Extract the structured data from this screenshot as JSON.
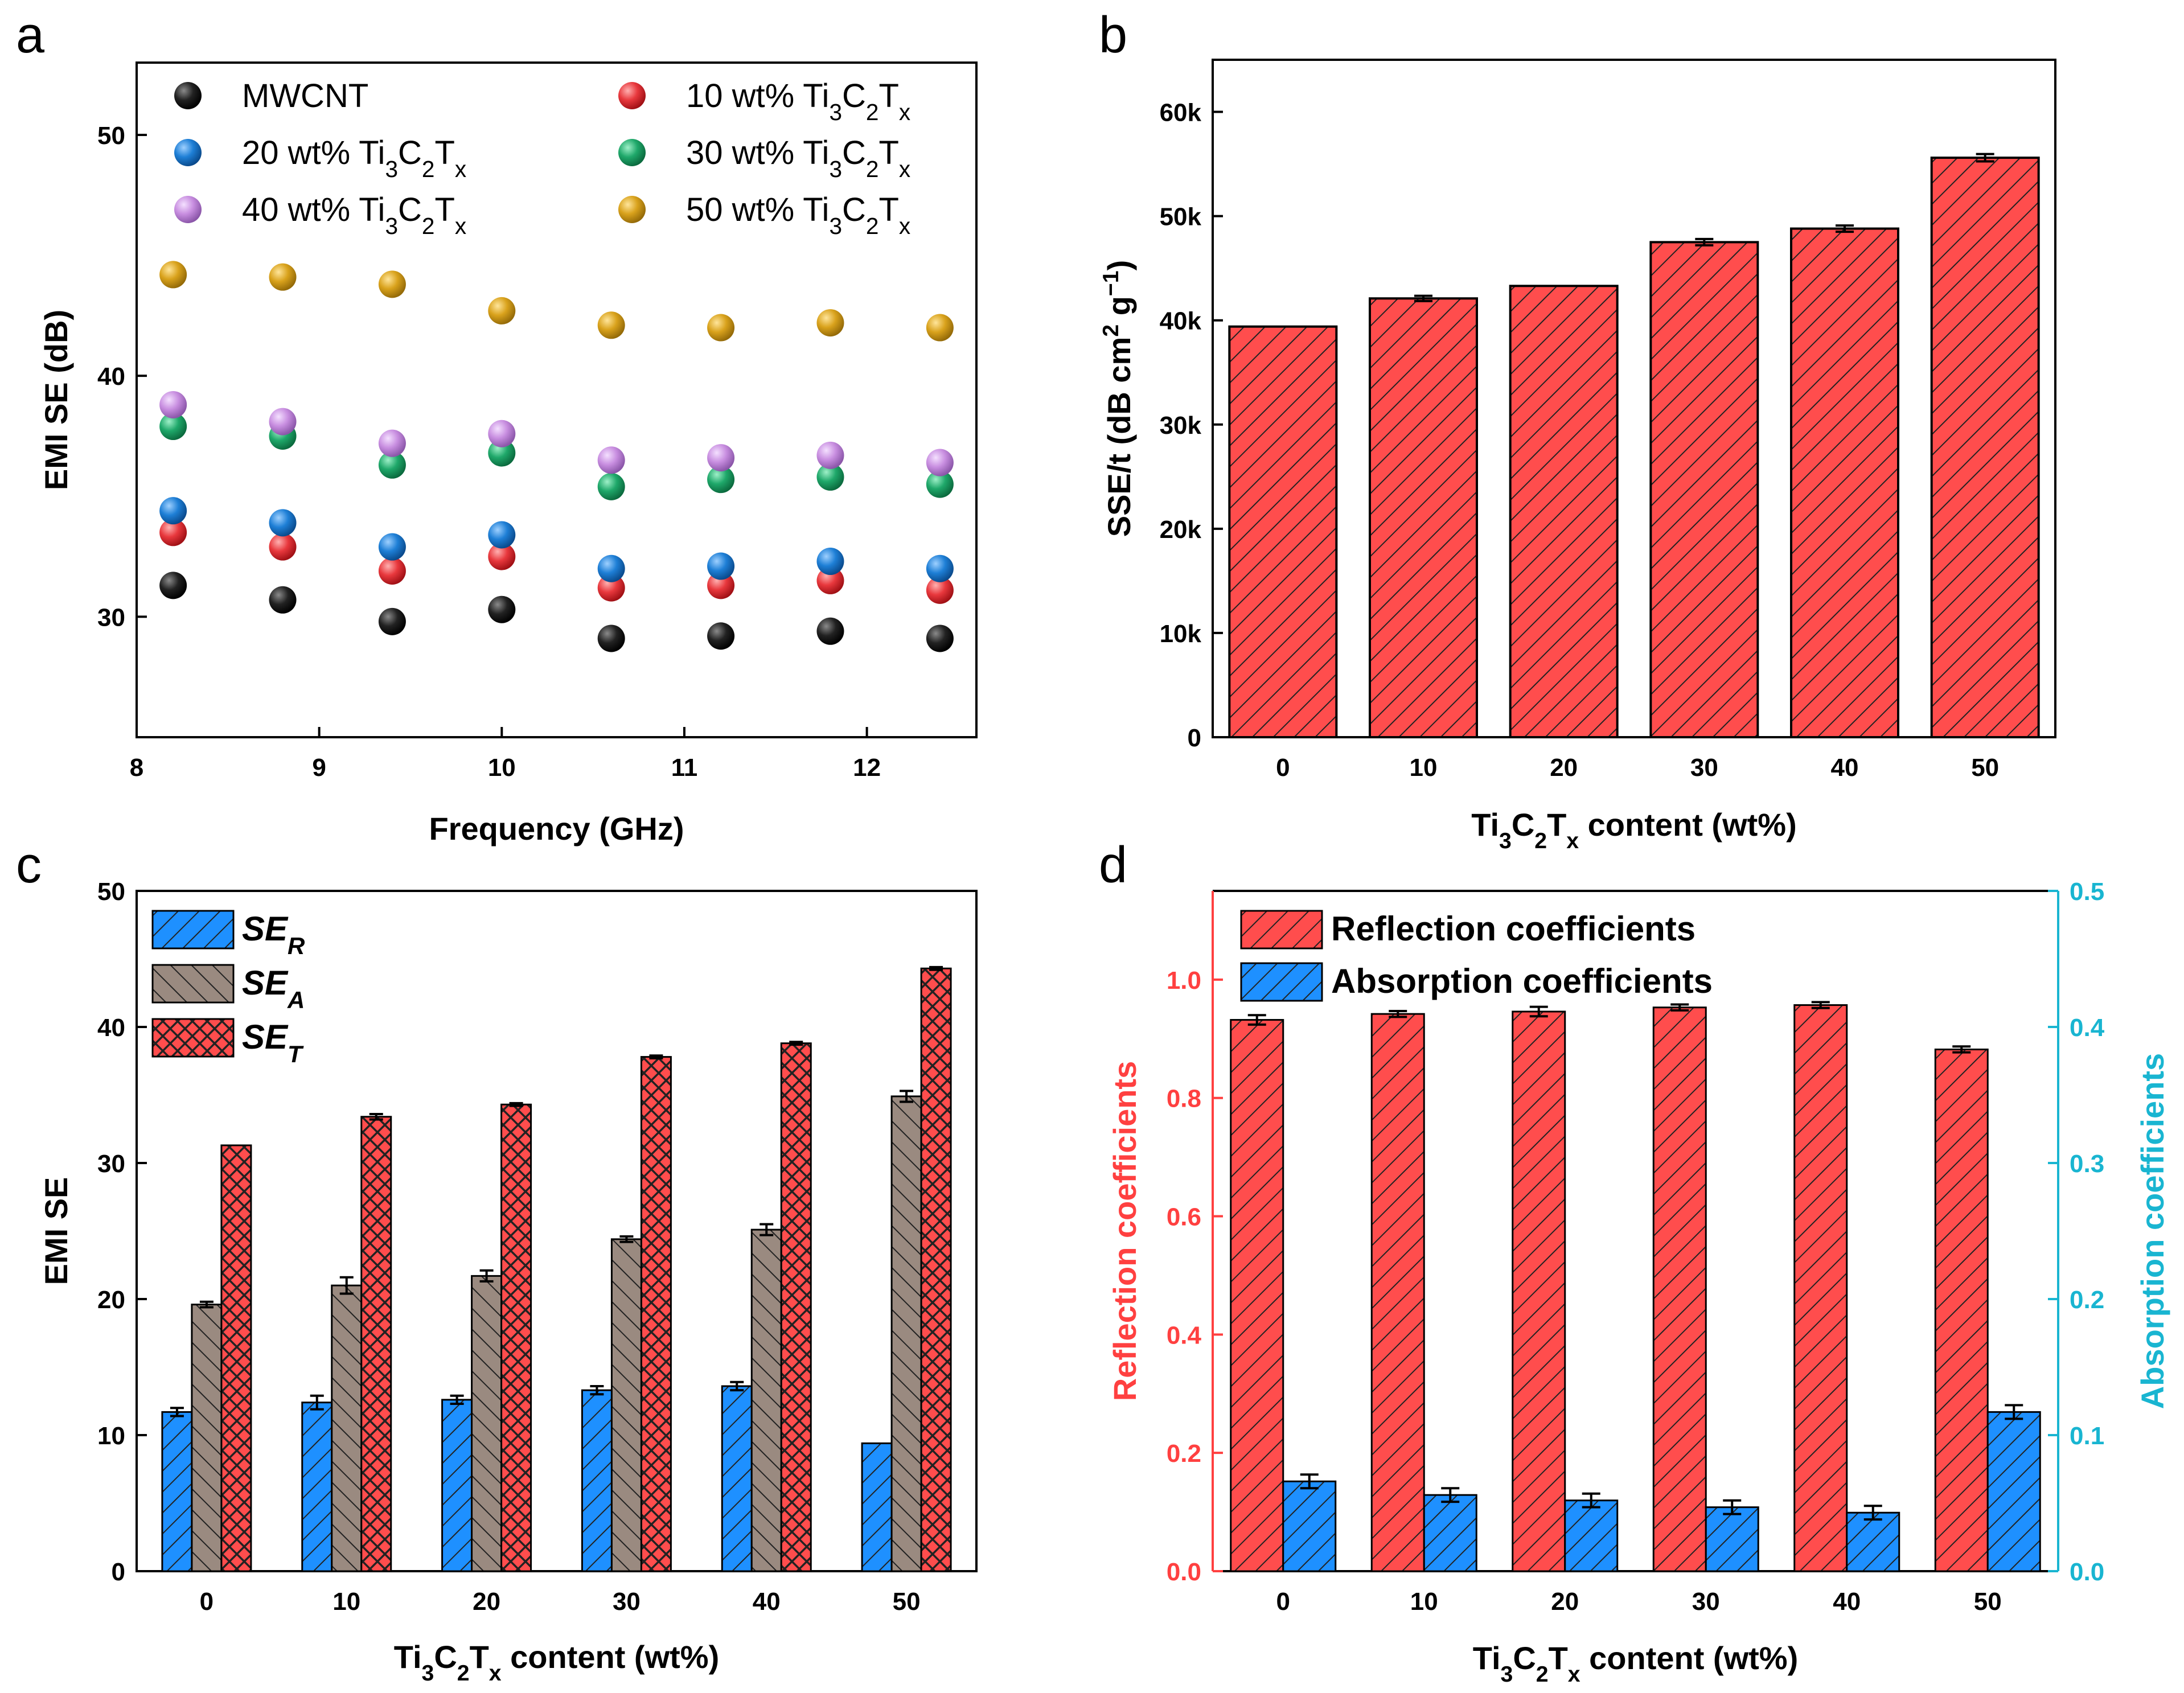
{
  "colors": {
    "MWCNT": "#1a1a1a",
    "s10": "#e8383d",
    "s20": "#1e7fd6",
    "s30": "#1fa86a",
    "s40": "#c88ee0",
    "s50": "#d9a21c",
    "bar_red": "#ff4d4d",
    "bar_blue": "#1e90ff",
    "bar_brown": "#9a8a80",
    "right_axis": "#19b5d1",
    "left_axis_red": "#ff4040"
  },
  "chart_data": [
    {
      "panel": "a",
      "type": "scatter",
      "xlabel": "Frequency (GHz)",
      "ylabel": "EMI SE (dB)",
      "xlim": [
        8,
        12.6
      ],
      "ylim": [
        25,
        53
      ],
      "xticks": [
        "8",
        "9",
        "10",
        "11",
        "12"
      ],
      "yticks": [
        "30",
        "40",
        "50"
      ],
      "x": [
        8.2,
        8.8,
        9.4,
        10.0,
        10.6,
        11.2,
        11.8,
        12.4
      ],
      "legend_suffix": "wt% Ti3C2Tx",
      "series": [
        {
          "name": "MWCNT",
          "color_key": "MWCNT",
          "values": [
            31.3,
            30.7,
            29.8,
            30.3,
            29.1,
            29.2,
            29.4,
            29.1
          ]
        },
        {
          "name": "10",
          "color_key": "s10",
          "values": [
            33.5,
            32.9,
            31.9,
            32.5,
            31.2,
            31.3,
            31.5,
            31.1
          ]
        },
        {
          "name": "20",
          "color_key": "s20",
          "values": [
            34.4,
            33.9,
            32.9,
            33.4,
            32.0,
            32.1,
            32.3,
            32.0
          ]
        },
        {
          "name": "30",
          "color_key": "s30",
          "values": [
            37.9,
            37.5,
            36.3,
            36.8,
            35.4,
            35.7,
            35.8,
            35.5
          ]
        },
        {
          "name": "40",
          "color_key": "s40",
          "values": [
            38.8,
            38.1,
            37.2,
            37.6,
            36.5,
            36.6,
            36.7,
            36.4
          ]
        },
        {
          "name": "50",
          "color_key": "s50",
          "values": [
            44.2,
            44.1,
            43.8,
            42.7,
            42.1,
            42.0,
            42.2,
            42.0
          ]
        }
      ]
    },
    {
      "panel": "b",
      "type": "bar",
      "xlabel": "Ti3C2Tx content (wt%)",
      "ylabel": "SSE/t (dB cm2 g-1)",
      "categories": [
        "0",
        "10",
        "20",
        "30",
        "40",
        "50"
      ],
      "ylim": [
        0,
        65000
      ],
      "yticks": [
        "0",
        "10k",
        "20k",
        "30k",
        "40k",
        "50k",
        "60k"
      ],
      "values": [
        39400,
        42100,
        43300,
        47500,
        48800,
        55600
      ],
      "errors": [
        0,
        250,
        0,
        300,
        300,
        350
      ]
    },
    {
      "panel": "c",
      "type": "bar",
      "xlabel": "Ti3C2Tx content (wt%)",
      "ylabel": "EMI SE",
      "categories": [
        "0",
        "10",
        "20",
        "30",
        "40",
        "50"
      ],
      "ylim": [
        0,
        50
      ],
      "yticks": [
        "0",
        "10",
        "20",
        "30",
        "40",
        "50"
      ],
      "series": [
        {
          "name": "SE",
          "sub": "R",
          "values": [
            11.7,
            12.4,
            12.6,
            13.3,
            13.6,
            9.4
          ],
          "errors": [
            0.3,
            0.5,
            0.3,
            0.3,
            0.3,
            0.0
          ]
        },
        {
          "name": "SE",
          "sub": "A",
          "values": [
            19.6,
            21.0,
            21.7,
            24.4,
            25.1,
            34.9
          ],
          "errors": [
            0.2,
            0.6,
            0.4,
            0.2,
            0.4,
            0.4
          ]
        },
        {
          "name": "SE",
          "sub": "T",
          "values": [
            31.3,
            33.4,
            34.3,
            37.8,
            38.8,
            44.3
          ],
          "errors": [
            0.0,
            0.2,
            0.1,
            0.1,
            0.1,
            0.1
          ]
        }
      ]
    },
    {
      "panel": "d",
      "type": "bar",
      "xlabel": "Ti3C2Tx content (wt%)",
      "ylabel_left": "Reflection coefficients",
      "ylabel_right": "Absorption coefficients",
      "categories": [
        "0",
        "10",
        "20",
        "30",
        "40",
        "50"
      ],
      "ylim_left": [
        0,
        1.15
      ],
      "ylim_right": [
        0,
        0.5
      ],
      "yticks_left": [
        "0.0",
        "0.2",
        "0.4",
        "0.6",
        "0.8",
        "1.0"
      ],
      "yticks_right": [
        "0.0",
        "0.1",
        "0.2",
        "0.3",
        "0.4",
        "0.5"
      ],
      "series": [
        {
          "name": "Reflection coefficients",
          "axis": "left",
          "values": [
            0.932,
            0.942,
            0.946,
            0.953,
            0.957,
            0.882
          ],
          "errors": [
            0.008,
            0.005,
            0.008,
            0.005,
            0.005,
            0.005
          ]
        },
        {
          "name": "Absorption coefficients",
          "axis": "right",
          "values": [
            0.066,
            0.056,
            0.052,
            0.047,
            0.043,
            0.117
          ],
          "errors": [
            0.005,
            0.005,
            0.005,
            0.005,
            0.005,
            0.005
          ]
        }
      ]
    }
  ]
}
